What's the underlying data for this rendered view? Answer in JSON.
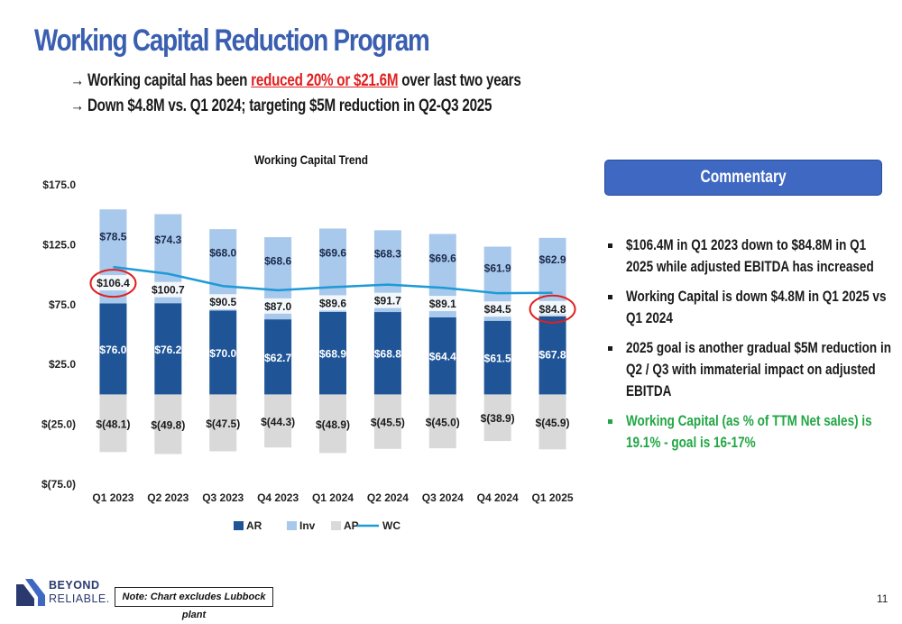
{
  "title": "Working Capital Reduction Program",
  "subtitle": {
    "line1_prefix": "→ Working capital has been ",
    "line1_highlight": "reduced 20% or $21.6M",
    "line1_suffix": " over last two years",
    "line2": "→ Down $4.8M vs. Q1 2024; targeting $5M reduction in Q2-Q3 2025"
  },
  "chart_data": {
    "type": "bar",
    "title": "Working Capital Trend",
    "categories": [
      "Q1 2023",
      "Q2 2023",
      "Q3 2023",
      "Q4 2023",
      "Q1 2024",
      "Q2 2024",
      "Q3 2024",
      "Q4 2024",
      "Q1 2025"
    ],
    "series": [
      {
        "name": "AR",
        "values": [
          76.0,
          76.2,
          70.0,
          62.7,
          68.9,
          68.8,
          64.4,
          61.5,
          67.8
        ],
        "labels": [
          "$76.0",
          "$76.2",
          "$70.0",
          "$62.7",
          "$68.9",
          "$68.8",
          "$64.4",
          "$61.5",
          "$67.8"
        ],
        "color": "#1f5596"
      },
      {
        "name": "Inv",
        "values": [
          78.5,
          74.3,
          68.0,
          68.6,
          69.6,
          68.3,
          69.6,
          61.9,
          62.9
        ],
        "labels": [
          "$78.5",
          "$74.3",
          "$68.0",
          "$68.6",
          "$69.6",
          "$68.3",
          "$69.6",
          "$61.9",
          "$62.9"
        ],
        "color": "#a8c8ec"
      },
      {
        "name": "AP",
        "values": [
          -48.1,
          -49.8,
          -47.5,
          -44.3,
          -48.9,
          -45.5,
          -45.0,
          -38.9,
          -45.9
        ],
        "labels": [
          "$(48.1)",
          "$(49.8)",
          "$(47.5)",
          "$(44.3)",
          "$(48.9)",
          "$(45.5)",
          "$(45.0)",
          "$(38.9)",
          "$(45.9)"
        ],
        "color": "#d9d9d9"
      },
      {
        "name": "WC",
        "values": [
          106.4,
          100.7,
          90.5,
          87.0,
          89.6,
          91.7,
          89.1,
          84.5,
          84.8
        ],
        "labels": [
          "$106.4",
          "$100.7",
          "$90.5",
          "$87.0",
          "$89.6",
          "$91.7",
          "$89.1",
          "$84.5",
          "$84.8"
        ],
        "color": "#1e9ad6"
      }
    ],
    "y_ticks": [
      175,
      125,
      75,
      25,
      -25,
      -75
    ],
    "y_tick_labels": [
      "$175.0",
      "$125.0",
      "$75.0",
      "$25.0",
      "$(25.0)",
      "$(75.0)"
    ],
    "ylim": [
      -75,
      175
    ],
    "highlighted": [
      "Q1 2023",
      "Q1 2025"
    ],
    "highlight_color": "#e02020",
    "legend_position": "bottom",
    "grid": false
  },
  "commentary": {
    "heading": "Commentary",
    "bullets": [
      "$106.4M in Q1 2023 down to $84.8M in Q1 2025 while adjusted EBITDA has increased",
      "Working Capital is down $4.8M in Q1 2025 vs Q1 2024",
      "2025 goal is another gradual $5M reduction in Q2 / Q3 with immaterial impact on adjusted EBITDA",
      "Working Capital (as % of TTM Net sales) is 19.1% - goal is 16-17%"
    ],
    "accent_color": "#22a645"
  },
  "footer": {
    "logo_line1": "BEYOND",
    "logo_line2": "RELIABLE.",
    "note": "Note: Chart excludes Lubbock plant",
    "page_number": "11"
  }
}
